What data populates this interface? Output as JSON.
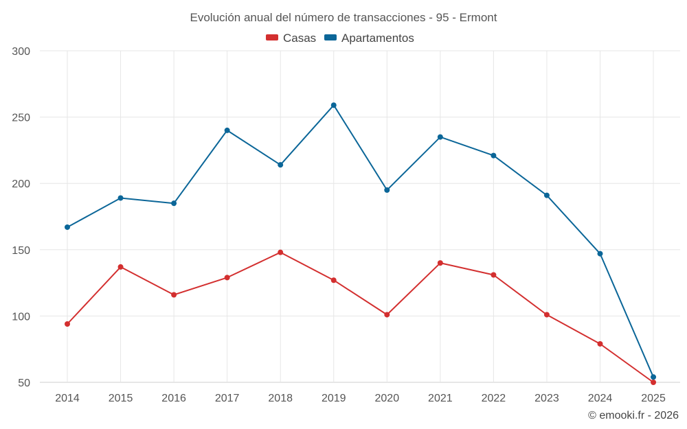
{
  "chart_data": {
    "type": "line",
    "title": "Evolución anual del número de transacciones - 95 - Ermont",
    "categories": [
      "2014",
      "2015",
      "2016",
      "2017",
      "2018",
      "2019",
      "2020",
      "2021",
      "2022",
      "2023",
      "2024",
      "2025"
    ],
    "series": [
      {
        "name": "Casas",
        "color": "#d32f2f",
        "values": [
          94,
          137,
          116,
          129,
          148,
          127,
          101,
          140,
          131,
          101,
          79,
          50
        ]
      },
      {
        "name": "Apartamentos",
        "color": "#0b6698",
        "values": [
          167,
          189,
          185,
          240,
          214,
          259,
          195,
          235,
          221,
          191,
          147,
          54
        ]
      }
    ],
    "ylim": [
      50,
      300
    ],
    "yticks": [
      50,
      100,
      150,
      200,
      250,
      300
    ],
    "xlabel": "",
    "ylabel": "",
    "grid": true,
    "legend": "top-center"
  },
  "credit": "© emooki.fr - 2026"
}
